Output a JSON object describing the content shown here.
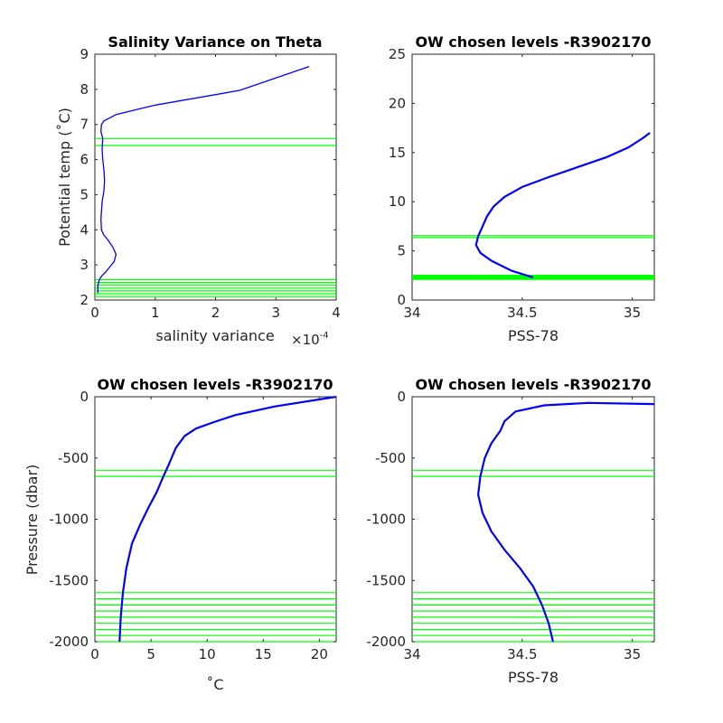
{
  "colors": {
    "profile": "#0000ff",
    "level": "#00ff00",
    "axis": "#262626"
  },
  "chart_data": [
    {
      "type": "line",
      "title": "Salinity Variance on Theta",
      "xlabel": "salinity variance",
      "x_exponent_label": "×10",
      "x_exponent_power": "-4",
      "ylabel": "Potential temp (˚C)",
      "xlim": [
        0,
        4
      ],
      "ylim": [
        2,
        9
      ],
      "xticks": [
        0,
        1,
        2,
        3,
        4
      ],
      "xtick_labels": [
        "0",
        "1",
        "2",
        "3",
        "4"
      ],
      "yticks": [
        2,
        3,
        4,
        5,
        6,
        7,
        8,
        9
      ],
      "ytick_labels": [
        "2",
        "3",
        "4",
        "5",
        "6",
        "7",
        "8",
        "9"
      ],
      "series": [
        {
          "x": [
            0.05,
            0.05,
            0.06,
            0.08,
            0.12,
            0.18,
            0.25,
            0.32,
            0.35,
            0.3,
            0.22,
            0.15,
            0.11,
            0.1,
            0.12,
            0.15,
            0.16,
            0.15,
            0.13,
            0.12,
            0.13,
            0.1,
            0.11,
            0.15,
            0.35,
            1.0,
            2.4,
            3.55
          ],
          "y": [
            2.2,
            2.4,
            2.5,
            2.6,
            2.7,
            2.8,
            2.95,
            3.1,
            3.3,
            3.5,
            3.7,
            3.85,
            4.0,
            4.3,
            4.8,
            5.1,
            5.4,
            5.7,
            6.0,
            6.3,
            6.6,
            6.8,
            7.0,
            7.1,
            7.28,
            7.55,
            7.97,
            8.65
          ]
        }
      ],
      "levels": [
        6.4,
        6.6,
        2.1,
        2.18,
        2.26,
        2.34,
        2.42,
        2.5,
        2.58
      ]
    },
    {
      "type": "line",
      "title": "OW chosen levels -R3902170",
      "xlabel": "PSS-78",
      "ylabel": "",
      "xlim": [
        34,
        35.1
      ],
      "ylim": [
        0,
        25
      ],
      "xticks": [
        34,
        34.5,
        35
      ],
      "xtick_labels": [
        "34",
        "34.5",
        "35"
      ],
      "yticks": [
        0,
        5,
        10,
        15,
        20,
        25
      ],
      "ytick_labels": [
        "0",
        "5",
        "10",
        "15",
        "20",
        "25"
      ],
      "series": [
        {
          "x": [
            34.55,
            34.45,
            34.36,
            34.31,
            34.29,
            34.3,
            34.32,
            34.34,
            34.37,
            34.42,
            34.5,
            34.62,
            34.75,
            34.88,
            34.98,
            35.05,
            35.08
          ],
          "y": [
            2.3,
            3.0,
            4.0,
            4.8,
            5.6,
            6.5,
            7.5,
            8.5,
            9.5,
            10.5,
            11.5,
            12.5,
            13.5,
            14.5,
            15.5,
            16.5,
            17.0
          ]
        }
      ],
      "levels": [
        6.35,
        6.55,
        2.1,
        2.17,
        2.24,
        2.31,
        2.38,
        2.45,
        2.52
      ]
    },
    {
      "type": "line",
      "title": "OW chosen levels -R3902170",
      "xlabel": "˚C",
      "ylabel": "Pressure (dbar)",
      "xlim": [
        0,
        21.5
      ],
      "ylim": [
        -2000,
        0
      ],
      "xticks": [
        0,
        5,
        10,
        15,
        20
      ],
      "xtick_labels": [
        "0",
        "5",
        "10",
        "15",
        "20"
      ],
      "yticks": [
        -2000,
        -1500,
        -1000,
        -500,
        0
      ],
      "ytick_labels": [
        "-2000",
        "-1500",
        "-1000",
        "-500",
        "0"
      ],
      "series": [
        {
          "x": [
            2.2,
            2.3,
            2.5,
            2.8,
            3.3,
            4.0,
            4.8,
            5.5,
            6.1,
            6.6,
            7.2,
            8.0,
            9.0,
            10.5,
            12.5,
            16.0,
            21.5
          ],
          "y": [
            -2000,
            -1800,
            -1600,
            -1400,
            -1200,
            -1050,
            -900,
            -780,
            -650,
            -550,
            -420,
            -320,
            -260,
            -210,
            -150,
            -80,
            0
          ]
        }
      ],
      "levels": [
        -600,
        -650,
        -1600,
        -1650,
        -1700,
        -1750,
        -1800,
        -1850,
        -1900,
        -1950,
        -2000
      ]
    },
    {
      "type": "line",
      "title": "OW chosen levels -R3902170",
      "xlabel": "PSS-78",
      "ylabel": "",
      "xlim": [
        34,
        35.1
      ],
      "ylim": [
        -2000,
        0
      ],
      "xticks": [
        34,
        34.5,
        35
      ],
      "xtick_labels": [
        "34",
        "34.5",
        "35"
      ],
      "yticks": [
        -2000,
        -1500,
        -1000,
        -500,
        0
      ],
      "ytick_labels": [
        "-2000",
        "-1500",
        "-1000",
        "-500",
        "0"
      ],
      "series": [
        {
          "x": [
            34.64,
            34.62,
            34.59,
            34.55,
            34.49,
            34.42,
            34.36,
            34.32,
            34.3,
            34.31,
            34.33,
            34.36,
            34.4,
            34.42,
            34.47,
            34.6,
            34.8,
            35.1
          ],
          "y": [
            -2000,
            -1850,
            -1700,
            -1550,
            -1400,
            -1250,
            -1100,
            -950,
            -800,
            -650,
            -500,
            -380,
            -280,
            -200,
            -120,
            -70,
            -50,
            -60
          ]
        }
      ],
      "levels": [
        -600,
        -650,
        -1600,
        -1650,
        -1700,
        -1750,
        -1800,
        -1850,
        -1900,
        -1950,
        -2000
      ]
    }
  ]
}
